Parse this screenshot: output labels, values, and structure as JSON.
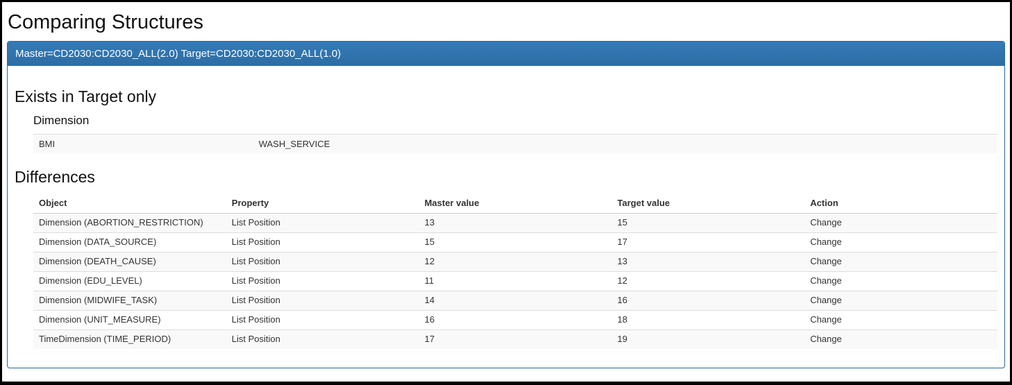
{
  "page": {
    "title": "Comparing Structures"
  },
  "banner": {
    "text": "Master=CD2030:CD2030_ALL(2.0) Target=CD2030:CD2030_ALL(1.0)"
  },
  "exists": {
    "heading": "Exists in Target only",
    "subheading": "Dimension",
    "rows": [
      {
        "id": "BMI",
        "name": "WASH_SERVICE"
      }
    ]
  },
  "differences": {
    "heading": "Differences",
    "columns": [
      "Object",
      "Property",
      "Master value",
      "Target value",
      "Action"
    ],
    "rows": [
      [
        "Dimension (ABORTION_RESTRICTION)",
        "List Position",
        "13",
        "15",
        "Change"
      ],
      [
        "Dimension (DATA_SOURCE)",
        "List Position",
        "15",
        "17",
        "Change"
      ],
      [
        "Dimension (DEATH_CAUSE)",
        "List Position",
        "12",
        "13",
        "Change"
      ],
      [
        "Dimension (EDU_LEVEL)",
        "List Position",
        "11",
        "12",
        "Change"
      ],
      [
        "Dimension (MIDWIFE_TASK)",
        "List Position",
        "14",
        "16",
        "Change"
      ],
      [
        "Dimension (UNIT_MEASURE)",
        "List Position",
        "16",
        "18",
        "Change"
      ],
      [
        "TimeDimension (TIME_PERIOD)",
        "List Position",
        "17",
        "19",
        "Change"
      ]
    ]
  },
  "colors": {
    "banner_top": "#337ab7",
    "banner_bottom": "#2e6da4",
    "panel_border": "#2b669a",
    "stripe": "#f9f9f9"
  }
}
